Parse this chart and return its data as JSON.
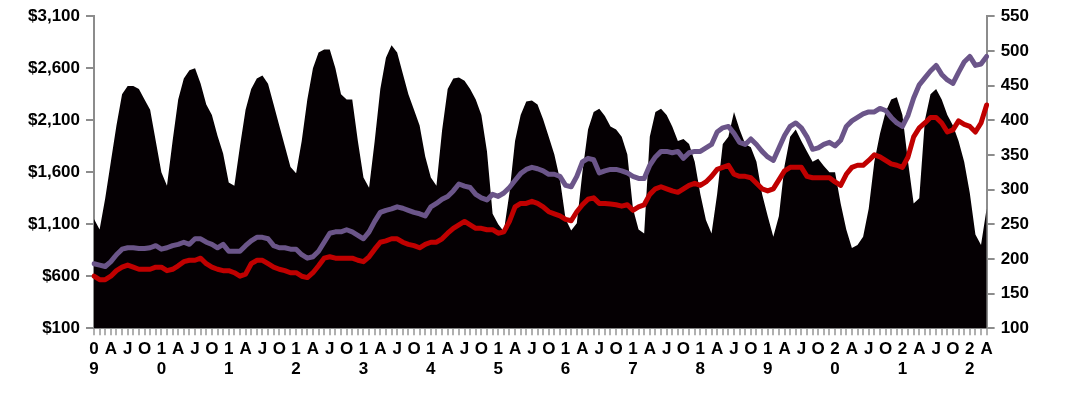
{
  "chart_data": {
    "type": "area",
    "grid": false,
    "categories": [
      "0\n9",
      null,
      null,
      "A",
      null,
      null,
      "J",
      null,
      null,
      "O",
      null,
      null,
      "1\n0",
      null,
      null,
      "A",
      null,
      null,
      "J",
      null,
      null,
      "O",
      null,
      null,
      "1\n1",
      null,
      null,
      "A",
      null,
      null,
      "J",
      null,
      null,
      "O",
      null,
      null,
      "1\n2",
      null,
      null,
      "A",
      null,
      null,
      "J",
      null,
      null,
      "O",
      null,
      null,
      "1\n3",
      null,
      null,
      "A",
      null,
      null,
      "J",
      null,
      null,
      "O",
      null,
      null,
      "1\n4",
      null,
      null,
      "A",
      null,
      null,
      "J",
      null,
      null,
      "O",
      null,
      null,
      "1\n5",
      null,
      null,
      "A",
      null,
      null,
      "J",
      null,
      null,
      "O",
      null,
      null,
      "1\n6",
      null,
      null,
      "A",
      null,
      null,
      "J",
      null,
      null,
      "O",
      null,
      null,
      "1\n7",
      null,
      null,
      "A",
      null,
      null,
      "J",
      null,
      null,
      "O",
      null,
      null,
      "1\n8",
      null,
      null,
      "A",
      null,
      null,
      "J",
      null,
      null,
      "O",
      null,
      null,
      "1\n9",
      null,
      null,
      "A",
      null,
      null,
      "J",
      null,
      null,
      "O",
      null,
      null,
      "2\n0",
      null,
      null,
      "A",
      null,
      null,
      "J",
      null,
      null,
      "O",
      null,
      null,
      "2\n1",
      null,
      null,
      "A",
      null,
      null,
      "J",
      null,
      null,
      "O",
      null,
      null,
      "2\n2",
      null,
      null,
      "A"
    ],
    "ylim": [
      100,
      3100
    ],
    "yticks": [
      {
        "value": 100,
        "label": "$100"
      },
      {
        "value": 600,
        "label": "$600"
      },
      {
        "value": 1100,
        "label": "$1,100"
      },
      {
        "value": 1600,
        "label": "$1,600"
      },
      {
        "value": 2100,
        "label": "$2,100"
      },
      {
        "value": 2600,
        "label": "$2,600"
      },
      {
        "value": 3100,
        "label": "$3,100"
      }
    ],
    "y2lim": [
      100,
      550
    ],
    "y2ticks": [
      100,
      150,
      200,
      250,
      300,
      350,
      400,
      450,
      500,
      550
    ],
    "series": [
      {
        "color": "#050003",
        "values": [
          1150,
          1050,
          1350,
          1700,
          2050,
          2350,
          2430,
          2430,
          2400,
          2300,
          2200,
          1900,
          1600,
          1470,
          1900,
          2300,
          2500,
          2580,
          2600,
          2450,
          2250,
          2150,
          1950,
          1780,
          1500,
          1470,
          1850,
          2200,
          2400,
          2500,
          2530,
          2450,
          2250,
          2050,
          1850,
          1650,
          1590,
          1900,
          2300,
          2600,
          2750,
          2780,
          2780,
          2600,
          2350,
          2300,
          2300,
          1900,
          1550,
          1450,
          1900,
          2400,
          2700,
          2820,
          2750,
          2550,
          2350,
          2200,
          2050,
          1750,
          1550,
          1470,
          2000,
          2400,
          2500,
          2510,
          2480,
          2400,
          2300,
          2150,
          1800,
          1200,
          1100,
          1030,
          1400,
          1900,
          2150,
          2280,
          2290,
          2250,
          2110,
          1940,
          1770,
          1530,
          1150,
          1040,
          1110,
          1600,
          2010,
          2180,
          2210,
          2140,
          2040,
          2010,
          1940,
          1770,
          1250,
          1050,
          1010,
          1940,
          2180,
          2210,
          2150,
          2040,
          1900,
          1920,
          1870,
          1700,
          1390,
          1140,
          1010,
          1390,
          1870,
          1940,
          2180,
          2010,
          1870,
          1840,
          1700,
          1390,
          1180,
          980,
          1180,
          1660,
          1940,
          2010,
          1900,
          1800,
          1700,
          1730,
          1660,
          1600,
          1600,
          1300,
          1050,
          870,
          900,
          980,
          1250,
          1700,
          1970,
          2180,
          2300,
          2320,
          2150,
          1700,
          1300,
          1350,
          2100,
          2350,
          2400,
          2300,
          2150,
          2050,
          1900,
          1700,
          1400,
          1000,
          900,
          1250
        ]
      },
      {
        "type": "line",
        "axis": "y2",
        "color": "#6b5589",
        "values": [
          193,
          191,
          189,
          196,
          206,
          214,
          216,
          216,
          215,
          215,
          216,
          219,
          214,
          216,
          219,
          221,
          224,
          221,
          229,
          229,
          224,
          221,
          216,
          221,
          211,
          211,
          211,
          219,
          226,
          231,
          231,
          229,
          219,
          216,
          216,
          214,
          214,
          206,
          201,
          203,
          211,
          224,
          237,
          239,
          239,
          242,
          239,
          234,
          229,
          239,
          254,
          267,
          270,
          272,
          275,
          273,
          270,
          267,
          265,
          262,
          275,
          280,
          286,
          290,
          298,
          308,
          305,
          303,
          293,
          288,
          285,
          293,
          290,
          295,
          303,
          313,
          323,
          329,
          332,
          330,
          327,
          322,
          322,
          319,
          306,
          304,
          319,
          340,
          345,
          343,
          324,
          327,
          329,
          329,
          327,
          324,
          319,
          316,
          316,
          335,
          347,
          355,
          355,
          353,
          355,
          345,
          353,
          355,
          355,
          360,
          365,
          383,
          389,
          391,
          381,
          368,
          365,
          373,
          365,
          355,
          347,
          342,
          360,
          378,
          391,
          396,
          389,
          376,
          358,
          360,
          365,
          368,
          363,
          371,
          391,
          399,
          404,
          409,
          412,
          412,
          417,
          414,
          404,
          396,
          391,
          407,
          432,
          451,
          461,
          471,
          479,
          466,
          458,
          453,
          469,
          484,
          492,
          479,
          481,
          492
        ]
      },
      {
        "type": "line",
        "axis": "y2",
        "color": "#c00000",
        "values": [
          175,
          170,
          170,
          175,
          183,
          188,
          191,
          188,
          185,
          185,
          185,
          188,
          188,
          183,
          185,
          190,
          196,
          198,
          198,
          201,
          193,
          188,
          185,
          183,
          183,
          180,
          175,
          178,
          193,
          198,
          198,
          193,
          188,
          185,
          183,
          180,
          180,
          175,
          173,
          180,
          190,
          201,
          203,
          201,
          201,
          201,
          201,
          198,
          196,
          203,
          214,
          224,
          226,
          229,
          229,
          224,
          221,
          219,
          216,
          221,
          224,
          224,
          229,
          237,
          244,
          249,
          254,
          249,
          244,
          244,
          242,
          242,
          237,
          239,
          254,
          275,
          280,
          280,
          283,
          280,
          275,
          268,
          265,
          262,
          257,
          255,
          268,
          278,
          286,
          288,
          280,
          280,
          279,
          278,
          276,
          278,
          270,
          275,
          278,
          293,
          301,
          304,
          301,
          298,
          296,
          301,
          306,
          309,
          306,
          311,
          319,
          329,
          332,
          335,
          322,
          319,
          319,
          317,
          309,
          301,
          298,
          301,
          314,
          327,
          332,
          332,
          332,
          319,
          317,
          317,
          317,
          317,
          311,
          306,
          322,
          332,
          335,
          335,
          342,
          350,
          347,
          342,
          337,
          335,
          332,
          347,
          376,
          389,
          396,
          404,
          404,
          396,
          383,
          386,
          399,
          394,
          391,
          383,
          396,
          422
        ]
      }
    ]
  }
}
